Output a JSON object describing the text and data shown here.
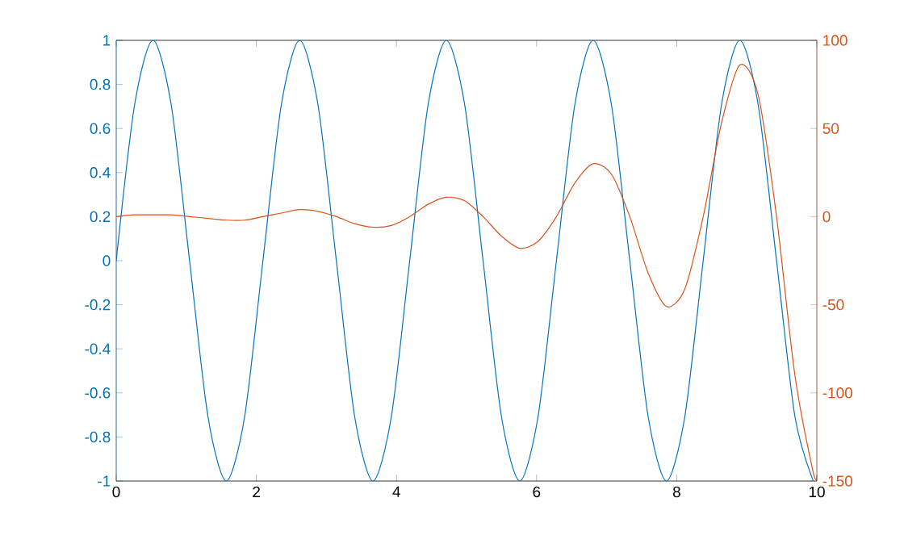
{
  "chart_data": {
    "type": "line",
    "x": [
      0,
      0.262,
      0.524,
      0.785,
      1.047,
      1.309,
      1.571,
      1.833,
      2.094,
      2.356,
      2.618,
      2.88,
      3.142,
      3.403,
      3.665,
      3.927,
      4.189,
      4.451,
      4.712,
      4.974,
      5.236,
      5.498,
      5.76,
      6.021,
      6.283,
      6.545,
      6.807,
      7.069,
      7.33,
      7.592,
      7.854,
      8.116,
      8.378,
      8.639,
      8.901,
      9.163,
      9.425,
      9.687,
      9.948,
      10
    ],
    "series": [
      {
        "color": "#0072bd",
        "values": [
          0,
          0.707,
          1,
          0.707,
          0,
          -0.707,
          -1,
          -0.707,
          0,
          0.707,
          1,
          0.707,
          0,
          -0.707,
          -1,
          -0.707,
          0,
          0.707,
          1,
          0.707,
          0,
          -0.707,
          -1,
          -0.707,
          0,
          0.707,
          1,
          0.707,
          0,
          -0.707,
          -1,
          -0.707,
          0,
          0.707,
          1,
          0.707,
          0,
          -0.707,
          -1,
          -0.988
        ]
      },
      {
        "color": "#d95319",
        "axis": "y2",
        "values": [
          0,
          1,
          1,
          1,
          0,
          -1,
          -2,
          -2,
          0,
          2,
          4,
          3,
          0,
          -4,
          -6,
          -5,
          0,
          7,
          11,
          9,
          0,
          -11,
          -18,
          -14,
          0,
          19,
          30,
          24,
          0,
          -32,
          -51,
          -41,
          0,
          53,
          86,
          69,
          0,
          -90,
          -145,
          -147
        ]
      }
    ],
    "xlim": [
      0,
      10
    ],
    "xticks": [
      0,
      2,
      4,
      6,
      8,
      10
    ],
    "ylim": [
      -1,
      1
    ],
    "yticks": [
      -1,
      -0.8,
      -0.6,
      -0.4,
      -0.2,
      0,
      0.2,
      0.4,
      0.6,
      0.8,
      1
    ],
    "y2lim": [
      -150,
      100
    ],
    "y2ticks": [
      -150,
      -100,
      -50,
      0,
      50,
      100
    ]
  }
}
